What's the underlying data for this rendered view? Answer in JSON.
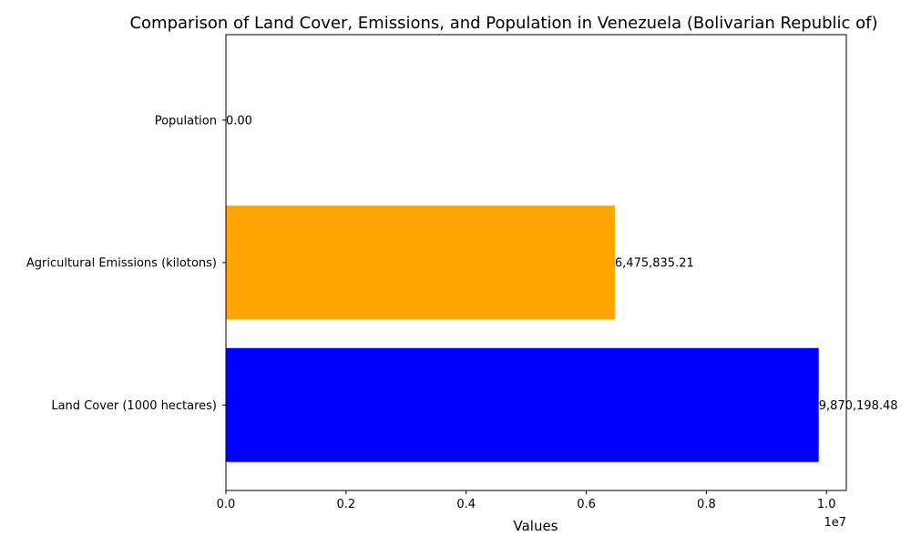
{
  "chart_data": {
    "type": "bar",
    "orientation": "horizontal",
    "title": "Comparison of Land Cover, Emissions, and Population in Venezuela (Bolivarian Republic of)",
    "xlabel": "Values",
    "ylabel": "",
    "x_scale_label": "1e7",
    "xlim": [
      0,
      10330000
    ],
    "x_ticks": [
      0,
      2000000,
      4000000,
      6000000,
      8000000,
      10000000
    ],
    "x_tick_labels": [
      "0.0",
      "0.2",
      "0.4",
      "0.6",
      "0.8",
      "1.0"
    ],
    "categories": [
      "Land Cover (1000 hectares)",
      "Agricultural Emissions (kilotons)",
      "Population"
    ],
    "values": [
      9870198.48,
      6475835.21,
      0.0
    ],
    "data_labels": [
      "9,870,198.48",
      "6,475,835.21",
      "0.00"
    ],
    "colors": [
      "#0000ff",
      "#ffa500",
      "#008000"
    ],
    "grid": false,
    "legend": "none"
  }
}
